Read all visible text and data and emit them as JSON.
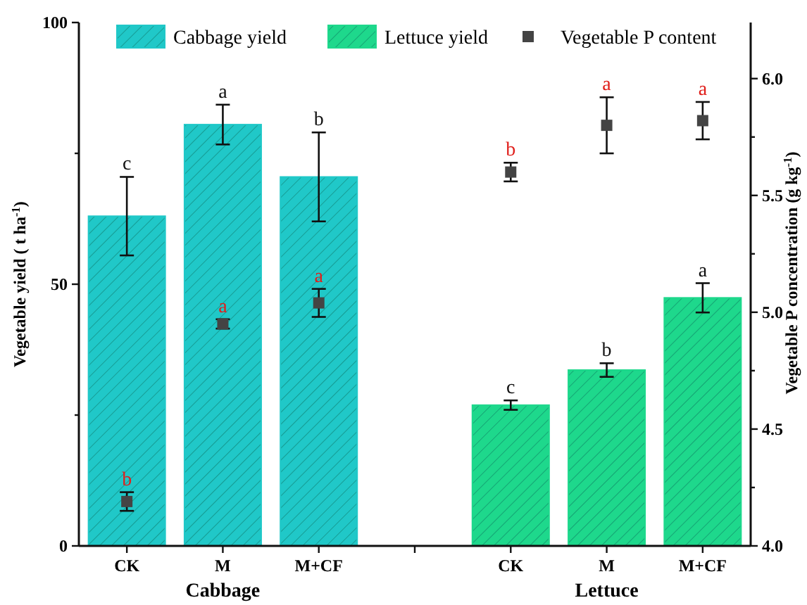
{
  "chart_data": {
    "type": "bar",
    "categories": [
      "CK",
      "M",
      "M+CF",
      null,
      "CK",
      "M",
      "M+CF"
    ],
    "ylabel": "Vegetable yield ( t ha$^{-1}$)",
    "y2label": "Vegetable P concentration (g kg$^{-1}$)",
    "ylim": [
      0,
      100
    ],
    "yticks": [
      0,
      {
        "value": 25,
        "label": null
      },
      50,
      {
        "value": 75,
        "label": null
      },
      100
    ],
    "y2lim": [
      4.0,
      6.24
    ],
    "y2ticks": [
      {
        "value": 4,
        "label": "4.0"
      },
      {
        "value": 4.25,
        "label": null
      },
      {
        "value": 4.5,
        "label": "4.5"
      },
      {
        "value": 4.75,
        "label": null
      },
      {
        "value": 5,
        "label": "5.0"
      },
      {
        "value": 5.25,
        "label": null
      },
      {
        "value": 5.5,
        "label": "5.5"
      },
      {
        "value": 5.75,
        "label": null
      },
      {
        "value": 6,
        "label": "6.0"
      }
    ],
    "annotations": [
      "Cabbage",
      "Lettuce"
    ],
    "legend": "top",
    "marker": "square",
    "series": [
      {
        "name": "Cabbage yield",
        "color": "#20c8c8",
        "values": [
          63,
          80.5,
          70.5,
          null,
          null,
          null,
          null
        ],
        "errors": [
          7.5,
          3.8,
          8.5,
          null,
          null,
          null,
          null
        ],
        "value_labels": [
          "c",
          "a",
          "b",
          null,
          null,
          null,
          null
        ]
      },
      {
        "name": "Lettuce yield",
        "color": "#1ed88c",
        "values": [
          null,
          null,
          null,
          null,
          26.9,
          33.6,
          47.4
        ],
        "errors": [
          null,
          null,
          null,
          null,
          0.9,
          1.3,
          2.8
        ],
        "value_labels": [
          null,
          null,
          null,
          null,
          "c",
          "b",
          "a"
        ]
      },
      {
        "name": "Vegetable P content",
        "type": "scatter",
        "axis": "y2",
        "color": "#444444",
        "values": [
          4.19,
          4.95,
          5.04,
          null,
          5.6,
          5.8,
          5.82
        ],
        "errors": [
          0.04,
          0.02,
          0.06,
          null,
          0.04,
          0.12,
          0.08
        ],
        "value_labels": [
          "b",
          "a",
          "a",
          null,
          "b",
          "a",
          "a"
        ]
      }
    ]
  }
}
